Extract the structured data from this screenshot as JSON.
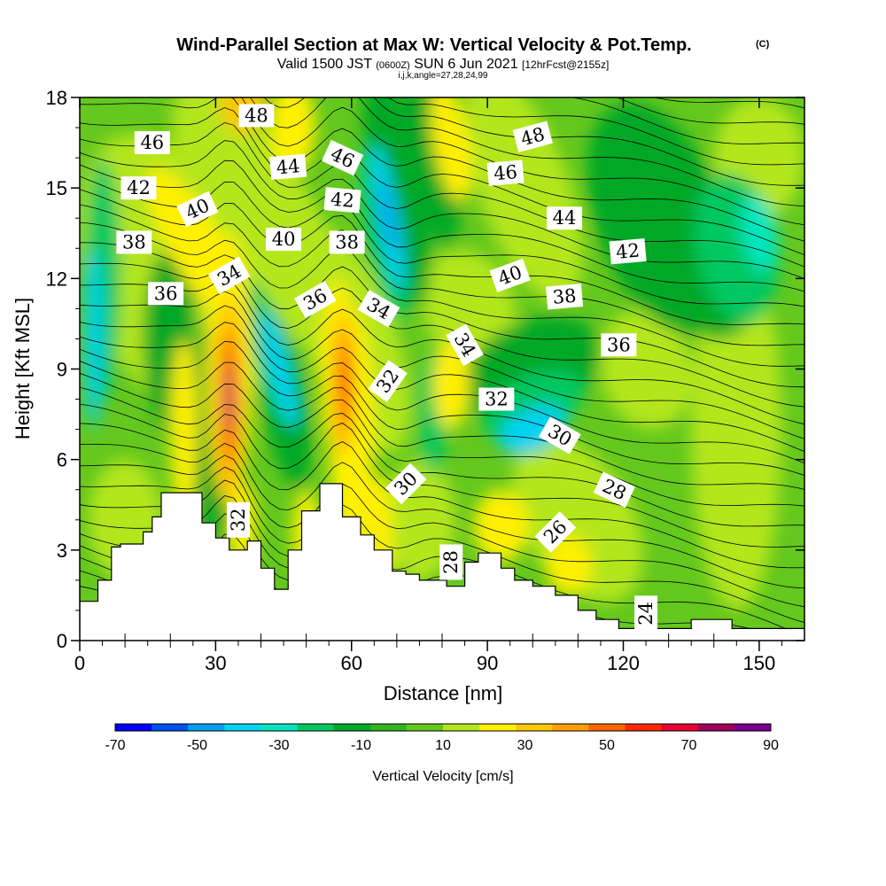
{
  "chart_data": {
    "type": "heatmap",
    "title": "Wind-Parallel Section at Max W: Vertical Velocity & Pot.Temp.",
    "title_mark": "(C)",
    "subtitle": {
      "valid": "Valid 1500 JST",
      "zulu": "(0600Z)",
      "date": "SUN 6 Jun 2021",
      "fcst": "[12hrFcst@2155z]"
    },
    "subsubtitle": "i,j,k,angle=27,28,24,99",
    "xlabel": "Distance [nm]",
    "ylabel": "Height [Kft MSL]",
    "xlim": [
      0,
      160
    ],
    "ylim": [
      0,
      18
    ],
    "x_ticks": [
      "0",
      "30",
      "60",
      "90",
      "120",
      "150"
    ],
    "y_ticks": [
      "0",
      "3",
      "6",
      "9",
      "12",
      "15",
      "18"
    ],
    "colorbar": {
      "label": "Vertical Velocity [cm/s]",
      "tick_labels": [
        "-70",
        "-50",
        "-30",
        "-10",
        "10",
        "30",
        "50",
        "70",
        "90"
      ],
      "colors": [
        "#0000ff",
        "#0050f0",
        "#00a0f0",
        "#00d2f0",
        "#00e6be",
        "#00c860",
        "#00a828",
        "#32b41e",
        "#64c81e",
        "#b4e61e",
        "#fff000",
        "#ffc800",
        "#ffa000",
        "#ff6400",
        "#ff2800",
        "#e60032",
        "#a0005a",
        "#78008c"
      ]
    },
    "terrain_profile": [
      [
        0,
        1.3
      ],
      [
        4,
        1.3
      ],
      [
        4,
        2.0
      ],
      [
        7,
        2.0
      ],
      [
        7,
        3.1
      ],
      [
        9,
        3.1
      ],
      [
        9,
        3.2
      ],
      [
        14,
        3.2
      ],
      [
        14,
        3.6
      ],
      [
        16,
        3.6
      ],
      [
        16,
        4.1
      ],
      [
        18,
        4.1
      ],
      [
        18,
        4.9
      ],
      [
        27,
        4.9
      ],
      [
        27,
        3.9
      ],
      [
        30,
        3.9
      ],
      [
        30,
        3.4
      ],
      [
        33,
        3.4
      ],
      [
        33,
        3.0
      ],
      [
        37,
        3.0
      ],
      [
        37,
        3.3
      ],
      [
        40,
        3.3
      ],
      [
        40,
        2.4
      ],
      [
        43,
        2.4
      ],
      [
        43,
        1.7
      ],
      [
        46,
        1.7
      ],
      [
        46,
        3.0
      ],
      [
        49,
        3.0
      ],
      [
        49,
        4.3
      ],
      [
        53,
        4.3
      ],
      [
        53,
        5.2
      ],
      [
        58,
        5.2
      ],
      [
        58,
        4.1
      ],
      [
        62,
        4.1
      ],
      [
        62,
        3.5
      ],
      [
        65,
        3.5
      ],
      [
        65,
        3.0
      ],
      [
        69,
        3.0
      ],
      [
        69,
        2.3
      ],
      [
        72,
        2.3
      ],
      [
        72,
        2.2
      ],
      [
        75,
        2.2
      ],
      [
        75,
        2.0
      ],
      [
        81,
        2.0
      ],
      [
        81,
        1.8
      ],
      [
        85,
        1.8
      ],
      [
        85,
        2.6
      ],
      [
        88,
        2.6
      ],
      [
        88,
        2.9
      ],
      [
        93,
        2.9
      ],
      [
        93,
        2.4
      ],
      [
        96,
        2.4
      ],
      [
        96,
        2.0
      ],
      [
        100,
        2.0
      ],
      [
        100,
        1.8
      ],
      [
        105,
        1.8
      ],
      [
        105,
        1.5
      ],
      [
        110,
        1.5
      ],
      [
        110,
        1.0
      ],
      [
        114,
        1.0
      ],
      [
        114,
        0.7
      ],
      [
        119,
        0.7
      ],
      [
        119,
        0.4
      ],
      [
        135,
        0.4
      ],
      [
        135,
        0.7
      ],
      [
        144,
        0.7
      ],
      [
        144,
        0.4
      ],
      [
        160,
        0.4
      ]
    ],
    "theta_labels": [
      {
        "text": "46",
        "x": 16,
        "y": 16.5,
        "rot": 0
      },
      {
        "text": "48",
        "x": 39,
        "y": 17.4,
        "rot": 0
      },
      {
        "text": "48",
        "x": 100,
        "y": 16.7,
        "rot": -15
      },
      {
        "text": "46",
        "x": 58,
        "y": 16.0,
        "rot": 25
      },
      {
        "text": "46",
        "x": 94,
        "y": 15.5,
        "rot": -5
      },
      {
        "text": "44",
        "x": 46,
        "y": 15.7,
        "rot": -5
      },
      {
        "text": "42",
        "x": 13,
        "y": 15.0,
        "rot": 0
      },
      {
        "text": "42",
        "x": 58,
        "y": 14.6,
        "rot": 5
      },
      {
        "text": "44",
        "x": 107,
        "y": 14.0,
        "rot": 0
      },
      {
        "text": "40",
        "x": 26,
        "y": 14.3,
        "rot": -25
      },
      {
        "text": "40",
        "x": 45,
        "y": 13.3,
        "rot": 0
      },
      {
        "text": "38",
        "x": 12,
        "y": 13.2,
        "rot": 0
      },
      {
        "text": "38",
        "x": 59,
        "y": 13.2,
        "rot": 0
      },
      {
        "text": "42",
        "x": 121,
        "y": 12.9,
        "rot": -5
      },
      {
        "text": "34",
        "x": 33,
        "y": 12.1,
        "rot": -30
      },
      {
        "text": "40",
        "x": 95,
        "y": 12.1,
        "rot": -20
      },
      {
        "text": "36",
        "x": 19,
        "y": 11.5,
        "rot": 0
      },
      {
        "text": "36",
        "x": 52,
        "y": 11.3,
        "rot": -30
      },
      {
        "text": "34",
        "x": 66,
        "y": 11.0,
        "rot": 30
      },
      {
        "text": "38",
        "x": 107,
        "y": 11.4,
        "rot": -5
      },
      {
        "text": "36",
        "x": 119,
        "y": 9.8,
        "rot": 0
      },
      {
        "text": "34",
        "x": 85,
        "y": 9.8,
        "rot": 60
      },
      {
        "text": "32",
        "x": 68,
        "y": 8.6,
        "rot": -55
      },
      {
        "text": "32",
        "x": 92,
        "y": 8.0,
        "rot": 0
      },
      {
        "text": "30",
        "x": 106,
        "y": 6.8,
        "rot": 30
      },
      {
        "text": "28",
        "x": 118,
        "y": 5.0,
        "rot": 25
      },
      {
        "text": "30",
        "x": 72,
        "y": 5.2,
        "rot": -45
      },
      {
        "text": "32",
        "x": 35,
        "y": 4.0,
        "rot": -90
      },
      {
        "text": "26",
        "x": 105,
        "y": 3.6,
        "rot": -45
      },
      {
        "text": "28",
        "x": 82,
        "y": 2.6,
        "rot": -90
      },
      {
        "text": "24",
        "x": 125,
        "y": 0.9,
        "rot": -90
      }
    ]
  }
}
